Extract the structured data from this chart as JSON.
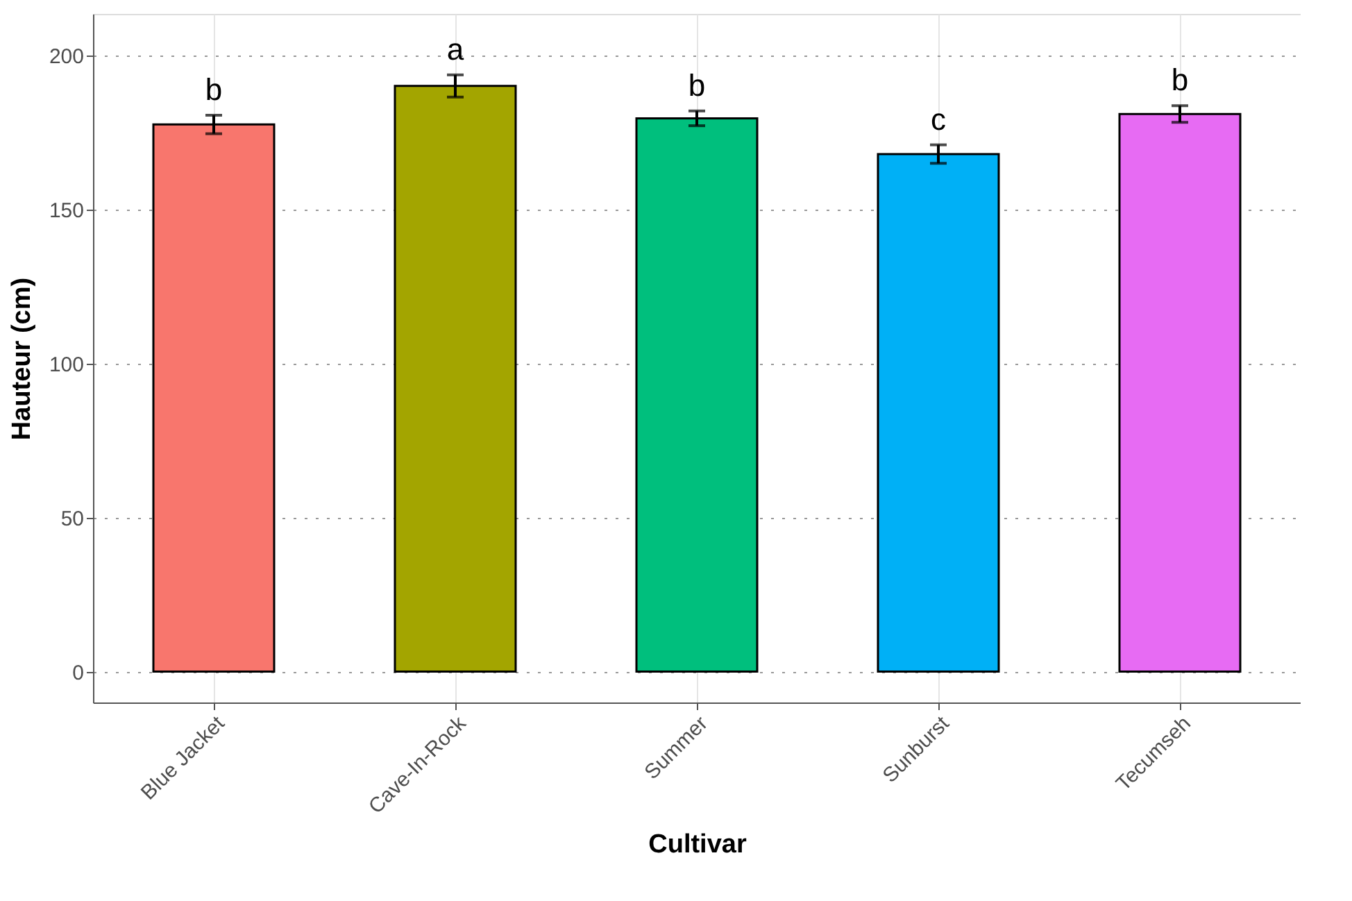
{
  "chart_data": {
    "type": "bar",
    "xlabel": "Cultivar",
    "ylabel": "Hauteur (cm)",
    "categories": [
      "Blue Jacket",
      "Cave-In-Rock",
      "Summer",
      "Sunburst",
      "Tecumseh"
    ],
    "values": [
      177.6,
      190.1,
      179.6,
      168,
      181
    ],
    "colors": [
      "#f8766d",
      "#a3a500",
      "#00bf7d",
      "#00b0f6",
      "#e76bf3"
    ],
    "errors": [
      3,
      3.6,
      2.4,
      3,
      2.7
    ],
    "ylim": [
      -10,
      213.5
    ],
    "yticks": [
      0,
      50,
      100,
      150,
      200
    ],
    "grid": true,
    "annotations": [
      "b",
      "a",
      "b",
      "c",
      "b"
    ]
  }
}
